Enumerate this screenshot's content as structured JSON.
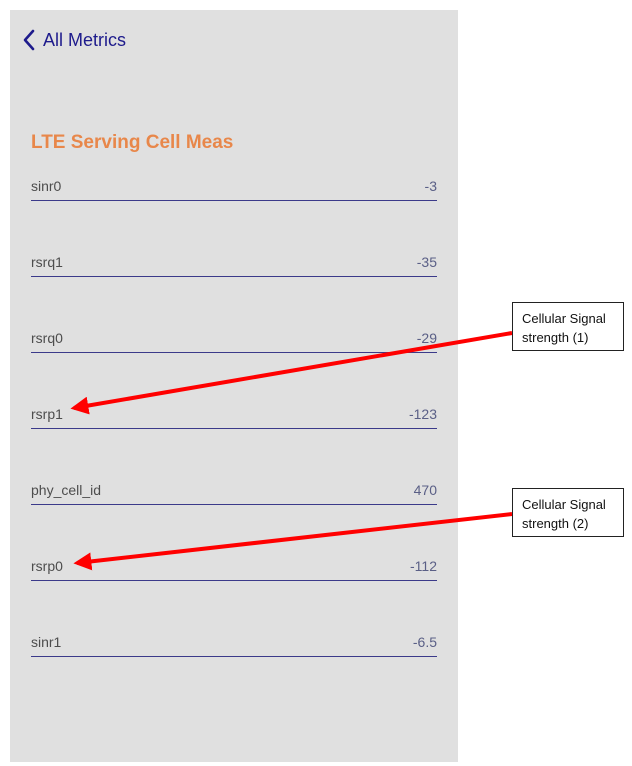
{
  "nav": {
    "back_label": "All Metrics",
    "back_icon": "chevron-left-icon"
  },
  "section": {
    "title": "LTE Serving Cell Meas"
  },
  "metrics": [
    {
      "name": "sinr0",
      "value": "-3"
    },
    {
      "name": "rsrq1",
      "value": "-35"
    },
    {
      "name": "rsrq0",
      "value": "-29"
    },
    {
      "name": "rsrp1",
      "value": "-123"
    },
    {
      "name": "phy_cell_id",
      "value": "470"
    },
    {
      "name": "rsrp0",
      "value": "-112"
    },
    {
      "name": "sinr1",
      "value": "-6.5"
    }
  ],
  "annotations": [
    {
      "text_line1": "Cellular Signal",
      "text_line2": "strength (1)",
      "points_to": "rsrp1"
    },
    {
      "text_line1": "Cellular Signal",
      "text_line2": "strength (2)",
      "points_to": "rsrp0"
    }
  ],
  "colors": {
    "background": "#e0e0e0",
    "nav_accent": "#1e1b8c",
    "title_accent": "#e8874a",
    "row_divider": "#3b3a8a",
    "annotation_arrow": "#ff0000"
  }
}
